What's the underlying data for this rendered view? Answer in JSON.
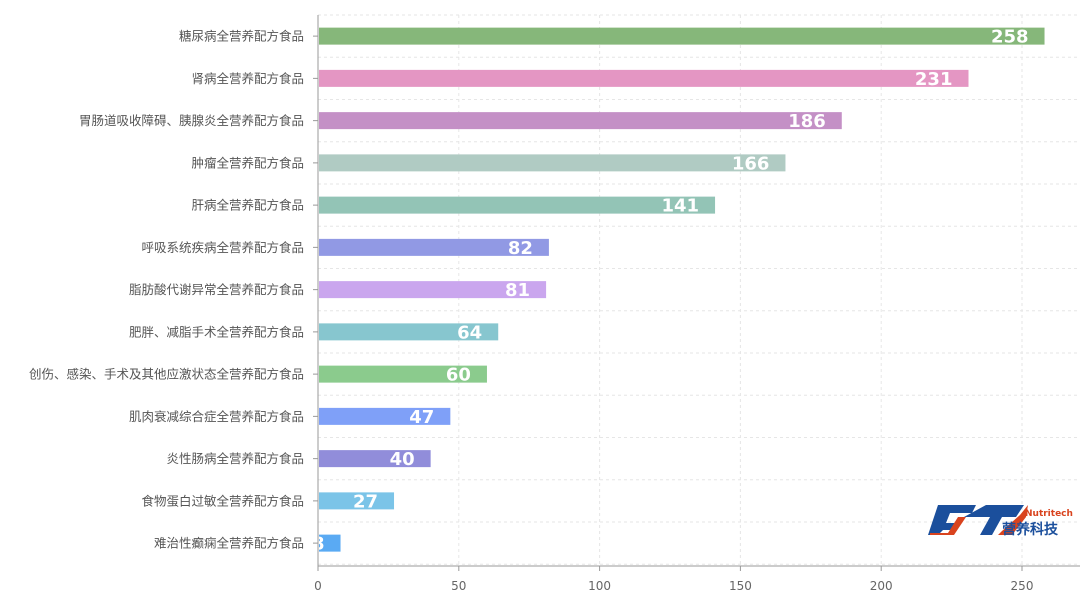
{
  "chart_data": {
    "type": "bar",
    "orientation": "horizontal",
    "categories": [
      "糖尿病全营养配方食品",
      "肾病全营养配方食品",
      "胃肠道吸收障碍、胰腺炎全营养配方食品",
      "肿瘤全营养配方食品",
      "肝病全营养配方食品",
      "呼吸系统疾病全营养配方食品",
      "脂肪酸代谢异常全营养配方食品",
      "肥胖、减脂手术全营养配方食品",
      "创伤、感染、手术及其他应激状态全营养配方食品",
      "肌肉衰减综合症全营养配方食品",
      "炎性肠病全营养配方食品",
      "食物蛋白过敏全营养配方食品",
      "难治性癫痫全营养配方食品"
    ],
    "values": [
      258,
      231,
      186,
      166,
      141,
      82,
      81,
      64,
      60,
      47,
      40,
      27,
      8
    ],
    "colors": [
      "#86b77a",
      "#e496c3",
      "#c490c6",
      "#b0cbc3",
      "#93c4b6",
      "#9199e4",
      "#caa6ee",
      "#87c6cf",
      "#8bcb8d",
      "#7fa0f8",
      "#918dda",
      "#7bc4e8",
      "#5aaaf3"
    ],
    "xticks": [
      "0",
      "50",
      "100",
      "150",
      "200",
      "250"
    ],
    "xlim": [
      0,
      270
    ],
    "title": "",
    "xlabel": "",
    "ylabel": "",
    "grid": true,
    "data_labels": "inside-end"
  },
  "logo": {
    "text_en": "Nutritech",
    "text_cn": "营养科技"
  }
}
